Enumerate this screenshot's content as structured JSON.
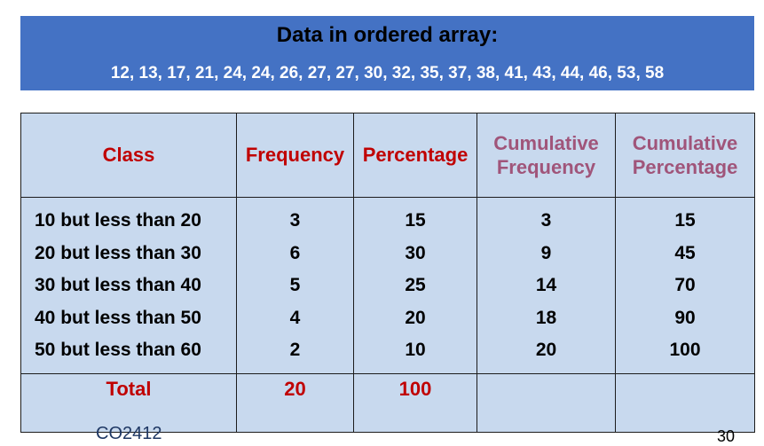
{
  "banner": {
    "title": "Data in ordered array:",
    "values": "12, 13, 17, 21, 24, 24, 26, 27, 27, 30, 32, 35, 37, 38, 41, 43, 44, 46, 53, 58"
  },
  "table": {
    "headers": {
      "class": "Class",
      "frequency": "Frequency",
      "percentage": "Percentage",
      "cum_freq_line1": "Cumulative",
      "cum_freq_line2": "Frequency",
      "cum_pct_line1": "Cumulative",
      "cum_pct_line2": "Percentage"
    },
    "rows": [
      {
        "class": "10 but less than 20",
        "frequency": "3",
        "percentage": "15",
        "cum_frequency": "3",
        "cum_percentage": "15"
      },
      {
        "class": "20 but less than 30",
        "frequency": "6",
        "percentage": "30",
        "cum_frequency": "9",
        "cum_percentage": "45"
      },
      {
        "class": "30 but less than 40",
        "frequency": "5",
        "percentage": "25",
        "cum_frequency": "14",
        "cum_percentage": "70"
      },
      {
        "class": "40 but less than 50",
        "frequency": "4",
        "percentage": "20",
        "cum_frequency": "18",
        "cum_percentage": "90"
      },
      {
        "class": "50 but less than 60",
        "frequency": "2",
        "percentage": "10",
        "cum_frequency": "20",
        "cum_percentage": "100"
      }
    ],
    "total": {
      "label": "Total",
      "frequency": "20",
      "percentage": "100"
    }
  },
  "footer": {
    "course_code": "CO2412",
    "slide_number": "30"
  },
  "colors": {
    "banner_bg": "#4472c4",
    "table_bg": "#c8d9ee",
    "header_red": "#c00000",
    "header_purple": "#a0557a"
  }
}
